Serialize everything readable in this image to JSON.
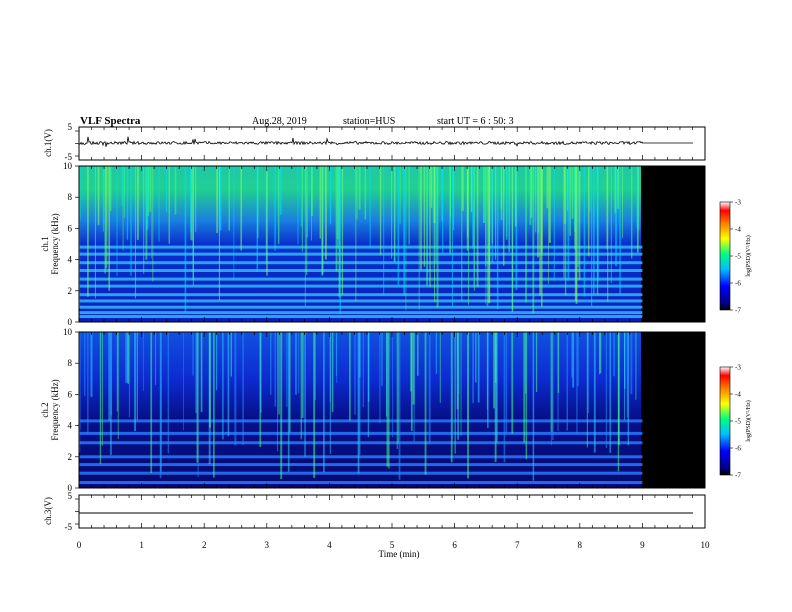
{
  "header": {
    "title": "VLF Spectra",
    "date": "Aug.28, 2019",
    "station": "station=HUS",
    "start": "start  UT =  6 : 50: 3"
  },
  "chart_data": [
    {
      "type": "line",
      "panel": "ch.1 waveform",
      "ylabel": "ch.1(V)",
      "ylim": [
        -5,
        5
      ],
      "yticks": [
        "5",
        "-5"
      ],
      "xlim": [
        0,
        10
      ],
      "data_end_min": 9.0,
      "series": [
        {
          "description": "noisy trace near 0 V from 0 to 9 min, flat line after",
          "baseline": 0
        }
      ]
    },
    {
      "type": "heatmap",
      "panel": "ch.1 spectrogram",
      "ylabel_top": "ch.1",
      "ylabel": "Frequency (kHz)",
      "ylim": [
        0,
        10
      ],
      "yticks": [
        "0",
        "2",
        "4",
        "6",
        "8",
        "10"
      ],
      "xlim": [
        0,
        10
      ],
      "data_end_min": 9.0,
      "bands_khz": [
        0.35,
        0.6,
        0.95,
        1.35,
        1.75,
        2.3,
        2.75,
        3.3,
        3.8,
        4.35,
        4.8
      ],
      "colorbar": {
        "label": "log(PSD)(V²/Hz)",
        "range": [
          -7,
          -3
        ],
        "ticks": [
          "-3",
          "-4",
          "-5",
          "-6",
          "-7"
        ]
      }
    },
    {
      "type": "heatmap",
      "panel": "ch.2 spectrogram",
      "ylabel_top": "ch.2",
      "ylabel": "Frequency (kHz)",
      "ylim": [
        0,
        10
      ],
      "yticks": [
        "0",
        "2",
        "4",
        "6",
        "8",
        "10"
      ],
      "xlim": [
        0,
        10
      ],
      "data_end_min": 9.0,
      "bands_khz": [
        0.35,
        0.95,
        1.5,
        2.0,
        2.9,
        3.5,
        4.3
      ],
      "colorbar": {
        "label": "log(PSD)(V²/Hz)",
        "range": [
          -7,
          -3
        ],
        "ticks": [
          "-3",
          "-4",
          "-5",
          "-6",
          "-7"
        ]
      }
    },
    {
      "type": "line",
      "panel": "ch.3 waveform",
      "ylabel": "ch.3(V)",
      "ylim": [
        -5,
        5
      ],
      "yticks": [
        "5",
        "-5"
      ],
      "xlim": [
        0,
        10
      ],
      "series": [
        {
          "description": "flat line",
          "value": 0
        }
      ]
    }
  ],
  "xaxis": {
    "label": "Time (min)",
    "ticks": [
      "0",
      "1",
      "2",
      "3",
      "4",
      "5",
      "6",
      "7",
      "8",
      "9",
      "10"
    ]
  },
  "colors": {
    "background": "#000000",
    "trace": "#000000",
    "colormap": [
      "#000000",
      "#000080",
      "#0000ff",
      "#00bfff",
      "#00ff80",
      "#ffff00",
      "#ff8000",
      "#ff0000",
      "#ffffff"
    ]
  }
}
